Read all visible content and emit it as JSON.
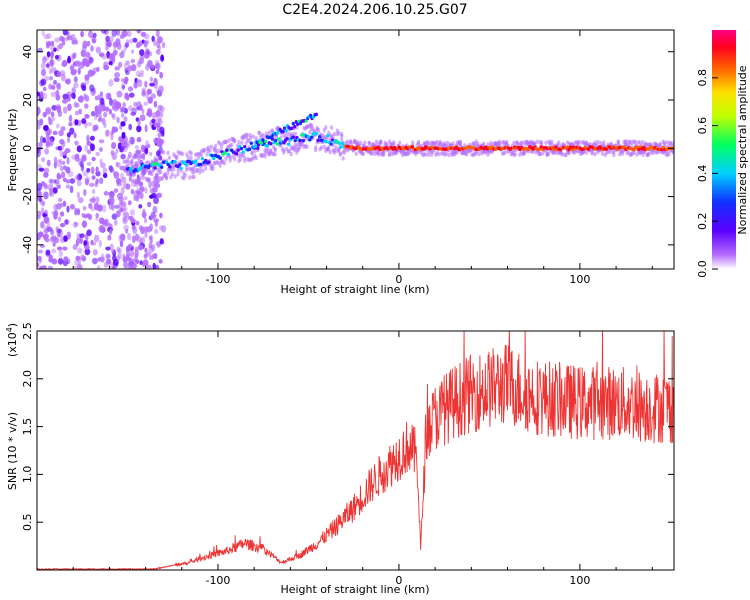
{
  "figure": {
    "title": "C2E4.2024.206.10.25.G07"
  },
  "chart_data": [
    {
      "type": "heatmap",
      "xlabel": "Height of straight line (km)",
      "ylabel": "Frequency (Hz)",
      "xlim": [
        -200,
        152
      ],
      "ylim": [
        -50,
        49
      ],
      "xticks": [
        -100,
        0,
        100
      ],
      "yticks": [
        -40,
        -20,
        0,
        20,
        40
      ],
      "colorbar": {
        "label": "Normalized spectral amplitude",
        "range": [
          0,
          1
        ],
        "ticks": [
          "0.0",
          "0.2",
          "0.4",
          "0.6",
          "0.8"
        ],
        "colors": [
          "#ffffff",
          "#b36bff",
          "#5a00ff",
          "#1030ff",
          "#00d0ff",
          "#00ff60",
          "#c0ff00",
          "#ffe000",
          "#ff6000",
          "#ff0020",
          "#ff0080"
        ]
      },
      "ridge": {
        "x": [
          -150,
          -140,
          -130,
          -120,
          -110,
          -100,
          -90,
          -80,
          -70,
          -60,
          -50,
          -40,
          -30,
          -20,
          -10,
          0,
          50,
          100,
          150
        ],
        "freq": [
          -9,
          -8,
          -7,
          -7,
          -6,
          -3,
          -1,
          1,
          3,
          3,
          5,
          4,
          1,
          0,
          0,
          0,
          0,
          0,
          0
        ]
      },
      "upper_branch": {
        "x": [
          -80,
          -70,
          -60,
          -50,
          -45
        ],
        "freq": [
          1,
          5,
          9,
          12,
          15
        ]
      },
      "noise_region_x": [
        -200,
        -130
      ]
    },
    {
      "type": "line",
      "xlabel": "Height of straight line (km)",
      "ylabel": "SNR (10 * v/v)",
      "yscale_label": "(x10",
      "yscale_exp": "4",
      "yscale_close": ")",
      "xlim": [
        -200,
        152
      ],
      "ylim": [
        0,
        25000
      ],
      "xticks": [
        -100,
        0,
        100
      ],
      "yticks": [
        "0.5",
        "1.0",
        "1.5",
        "2.0",
        "2.5"
      ],
      "color": "#ee3333",
      "envelope": {
        "x": [
          -200,
          -135,
          -130,
          -115,
          -110,
          -95,
          -85,
          -75,
          -65,
          -55,
          -45,
          -35,
          -25,
          -15,
          -5,
          5,
          10,
          12,
          15,
          20,
          30,
          40,
          50,
          60,
          70,
          80,
          100,
          120,
          140,
          152
        ],
        "snr": [
          100,
          100,
          300,
          800,
          1200,
          2000,
          2800,
          2200,
          800,
          1500,
          2800,
          4500,
          6500,
          9000,
          11000,
          13000,
          12000,
          2000,
          14500,
          16000,
          17500,
          18500,
          19000,
          19500,
          18500,
          18000,
          17500,
          17500,
          17000,
          17000
        ]
      }
    }
  ]
}
